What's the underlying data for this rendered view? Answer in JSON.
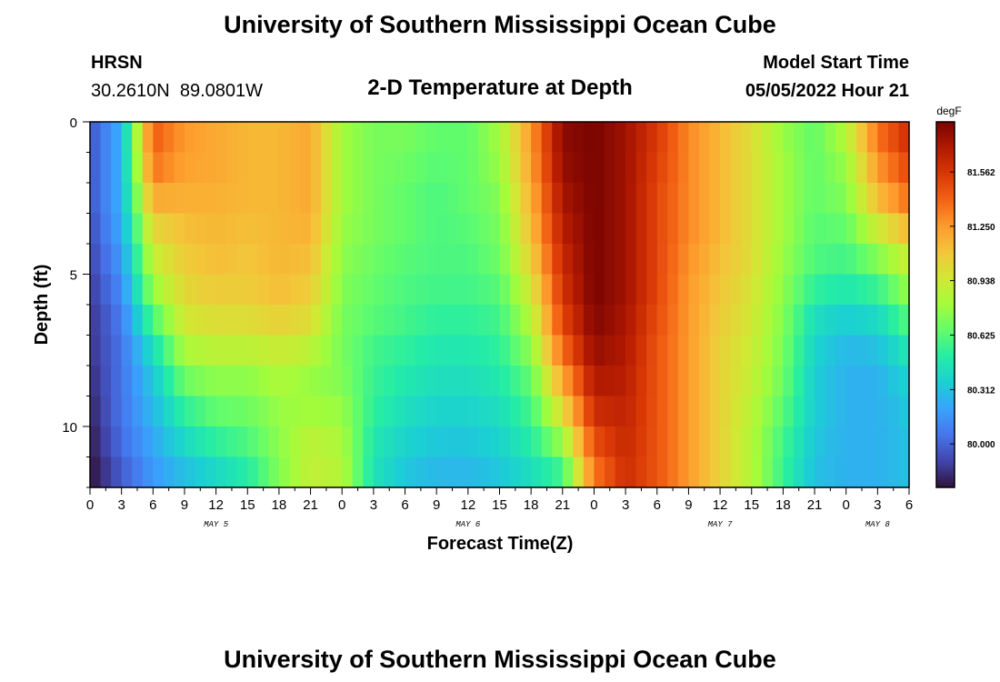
{
  "header": {
    "title": "University of Southern Mississippi Ocean Cube",
    "station": "HRSN",
    "coords": "30.2610N  89.0801W",
    "subtitle": "2-D Temperature at Depth",
    "model_label": "Model Start Time",
    "model_time": "05/05/2022 Hour 21"
  },
  "footer": {
    "title": "University of Southern Mississippi Ocean Cube"
  },
  "chart_data": {
    "type": "heatmap",
    "title": "2-D Temperature at Depth",
    "xlabel": "Forecast Time(Z)",
    "ylabel": "Depth (ft)",
    "x_range_hours": [
      0,
      78
    ],
    "y_range_ft": [
      0,
      12
    ],
    "y_inverted": true,
    "x_tick_labels": [
      "0",
      "3",
      "6",
      "9",
      "12",
      "15",
      "18",
      "21",
      "0",
      "3",
      "6",
      "9",
      "12",
      "15",
      "18",
      "21",
      "0",
      "3",
      "6",
      "9",
      "12",
      "15",
      "18",
      "21",
      "0",
      "3",
      "6"
    ],
    "y_tick_values": [
      0,
      5,
      10
    ],
    "date_labels": [
      {
        "text": "MAY 5",
        "hour": 12
      },
      {
        "text": "MAY 6",
        "hour": 36
      },
      {
        "text": "MAY 7",
        "hour": 60
      },
      {
        "text": "MAY 8",
        "hour": 75
      }
    ],
    "colorbar": {
      "unit": "degF",
      "ticks": [
        "81.562",
        "81.250",
        "80.938",
        "80.625",
        "80.312",
        "80.000"
      ],
      "range": [
        79.75,
        81.85
      ],
      "colors": [
        "#30123b",
        "#4145ab",
        "#4675ed",
        "#39a2fc",
        "#1bcfd4",
        "#24eca6",
        "#61fc6c",
        "#a4fc3b",
        "#d1e834",
        "#f3c63a",
        "#fe9b2d",
        "#f36315",
        "#d93806",
        "#b11901",
        "#7a0402"
      ]
    },
    "time_columns_hours": [
      0,
      3,
      6,
      9,
      12,
      15,
      18,
      21,
      24,
      27,
      30,
      33,
      36,
      39,
      42,
      45,
      48,
      51,
      54,
      57,
      60,
      63,
      66,
      69,
      72,
      75,
      78
    ],
    "depth_rows_ft": [
      0,
      1,
      2,
      3,
      4,
      5,
      6,
      7,
      8,
      9,
      10,
      11,
      12
    ],
    "values_degF": [
      [
        79.95,
        80.25,
        81.45,
        81.25,
        81.2,
        81.15,
        81.15,
        81.2,
        80.8,
        80.7,
        80.7,
        80.65,
        80.65,
        80.8,
        81.25,
        81.8,
        81.85,
        81.75,
        81.55,
        81.3,
        81.15,
        81.0,
        80.75,
        80.65,
        80.9,
        81.4,
        81.65
      ],
      [
        79.95,
        80.25,
        81.4,
        81.25,
        81.2,
        81.15,
        81.15,
        81.2,
        80.8,
        80.7,
        80.7,
        80.65,
        80.65,
        80.8,
        81.25,
        81.8,
        81.85,
        81.75,
        81.55,
        81.3,
        81.15,
        81.0,
        80.8,
        80.65,
        80.8,
        81.3,
        81.55
      ],
      [
        79.95,
        80.25,
        81.3,
        81.2,
        81.2,
        81.15,
        81.15,
        81.2,
        80.8,
        80.7,
        80.65,
        80.6,
        80.65,
        80.75,
        81.2,
        81.75,
        81.85,
        81.75,
        81.5,
        81.3,
        81.15,
        81.0,
        80.8,
        80.65,
        80.75,
        81.2,
        81.45
      ],
      [
        79.95,
        80.25,
        81.1,
        81.15,
        81.15,
        81.15,
        81.15,
        81.2,
        80.8,
        80.7,
        80.65,
        80.6,
        80.65,
        80.7,
        81.15,
        81.7,
        81.85,
        81.75,
        81.5,
        81.3,
        81.15,
        81.0,
        80.8,
        80.65,
        80.7,
        81.05,
        81.3
      ],
      [
        79.9,
        80.2,
        80.95,
        81.1,
        81.15,
        81.1,
        81.15,
        81.15,
        80.75,
        80.7,
        80.65,
        80.6,
        80.6,
        80.7,
        81.1,
        81.65,
        81.85,
        81.75,
        81.5,
        81.3,
        81.15,
        81.0,
        80.8,
        80.6,
        80.6,
        80.8,
        81.0
      ],
      [
        79.9,
        80.15,
        80.85,
        81.05,
        81.1,
        81.1,
        81.15,
        81.1,
        80.75,
        80.65,
        80.6,
        80.6,
        80.6,
        80.65,
        81.0,
        81.6,
        81.85,
        81.75,
        81.5,
        81.25,
        81.1,
        81.0,
        80.75,
        80.6,
        80.55,
        80.65,
        80.85
      ],
      [
        79.85,
        80.1,
        80.7,
        81.0,
        81.05,
        81.05,
        81.1,
        81.05,
        80.7,
        80.65,
        80.6,
        80.55,
        80.55,
        80.6,
        80.9,
        81.55,
        81.85,
        81.75,
        81.5,
        81.25,
        81.1,
        80.95,
        80.75,
        80.45,
        80.4,
        80.45,
        80.7
      ],
      [
        79.85,
        80.05,
        80.5,
        80.9,
        80.95,
        80.95,
        81.0,
        80.95,
        80.7,
        80.6,
        80.55,
        80.5,
        80.5,
        80.55,
        80.8,
        81.45,
        81.8,
        81.7,
        81.45,
        81.25,
        81.05,
        80.95,
        80.7,
        80.4,
        80.3,
        80.35,
        80.55
      ],
      [
        79.85,
        80.05,
        80.35,
        80.75,
        80.8,
        80.8,
        80.85,
        80.8,
        80.7,
        80.55,
        80.5,
        80.45,
        80.45,
        80.5,
        80.7,
        81.3,
        81.75,
        81.7,
        81.45,
        81.25,
        81.05,
        80.9,
        80.7,
        80.35,
        80.25,
        80.25,
        80.4
      ],
      [
        79.8,
        80.05,
        80.3,
        80.6,
        80.7,
        80.7,
        80.8,
        80.75,
        80.75,
        80.55,
        80.45,
        80.4,
        80.4,
        80.45,
        80.6,
        81.1,
        81.65,
        81.65,
        81.45,
        81.25,
        81.05,
        80.9,
        80.65,
        80.35,
        80.25,
        80.25,
        80.35
      ],
      [
        79.8,
        80.05,
        80.25,
        80.45,
        80.6,
        80.65,
        80.75,
        80.85,
        80.8,
        80.5,
        80.4,
        80.35,
        80.35,
        80.4,
        80.55,
        80.9,
        81.55,
        81.65,
        81.45,
        81.25,
        81.05,
        80.85,
        80.6,
        80.35,
        80.25,
        80.25,
        80.3
      ],
      [
        79.75,
        80.0,
        80.2,
        80.35,
        80.45,
        80.55,
        80.75,
        80.9,
        80.85,
        80.45,
        80.35,
        80.3,
        80.3,
        80.35,
        80.45,
        80.65,
        81.4,
        81.6,
        81.45,
        81.25,
        81.05,
        80.85,
        80.55,
        80.3,
        80.25,
        80.25,
        80.3
      ],
      [
        79.75,
        79.95,
        80.15,
        80.25,
        80.35,
        80.45,
        80.7,
        80.9,
        80.85,
        80.45,
        80.3,
        80.25,
        80.25,
        80.3,
        80.4,
        80.5,
        81.3,
        81.6,
        81.45,
        81.25,
        81.05,
        80.85,
        80.55,
        80.3,
        80.25,
        80.25,
        80.3
      ]
    ]
  }
}
